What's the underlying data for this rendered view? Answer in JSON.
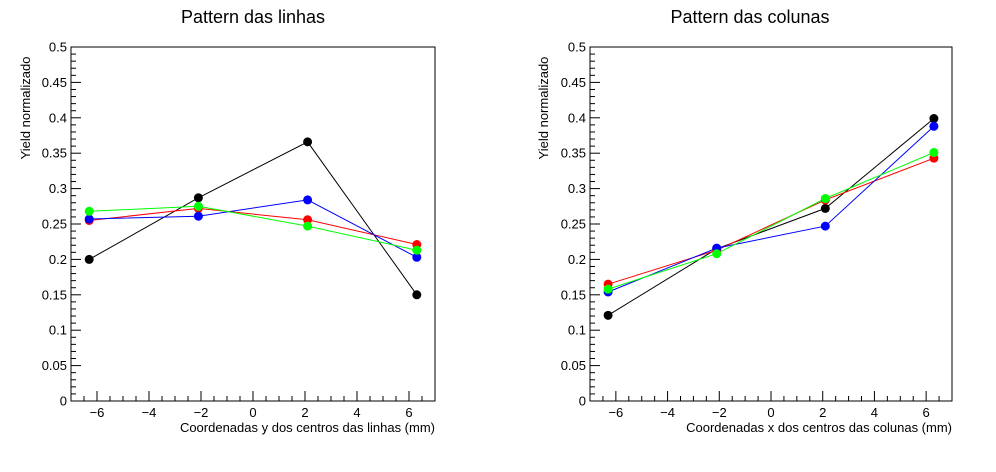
{
  "chart_data": [
    {
      "type": "line",
      "title": "Pattern das linhas",
      "xlabel": "Coordenadas y dos centros das linhas (mm)",
      "ylabel": "Yield normalizado",
      "xlim": [
        -7,
        7
      ],
      "ylim": [
        0,
        0.5
      ],
      "x_ticks": [
        -6,
        -4,
        -2,
        0,
        2,
        4,
        6
      ],
      "x_tick_labels": [
        "−6",
        "−4",
        "−2",
        "0",
        "2",
        "4",
        "6"
      ],
      "y_ticks": [
        0,
        0.05,
        0.1,
        0.15,
        0.2,
        0.25,
        0.3,
        0.35,
        0.4,
        0.45,
        0.5
      ],
      "y_tick_labels": [
        "0",
        "0.05",
        "0.1",
        "0.15",
        "0.2",
        "0.25",
        "0.3",
        "0.35",
        "0.4",
        "0.45",
        "0.5"
      ],
      "grid": false,
      "legend": false,
      "series": [
        {
          "color": "#000000",
          "x": [
            -6.3,
            -2.1,
            2.1,
            6.3
          ],
          "y": [
            0.2,
            0.287,
            0.366,
            0.15
          ]
        },
        {
          "color": "#ff0000",
          "x": [
            -6.3,
            -2.1,
            2.1,
            6.3
          ],
          "y": [
            0.255,
            0.272,
            0.256,
            0.221
          ]
        },
        {
          "color": "#0000ff",
          "x": [
            -6.3,
            -2.1,
            2.1,
            6.3
          ],
          "y": [
            0.257,
            0.261,
            0.284,
            0.203
          ]
        },
        {
          "color": "#00ff00",
          "x": [
            -6.3,
            -2.1,
            2.1,
            6.3
          ],
          "y": [
            0.268,
            0.275,
            0.247,
            0.213
          ]
        }
      ]
    },
    {
      "type": "line",
      "title": "Pattern das colunas",
      "xlabel": "Coordenadas x dos centros das colunas (mm)",
      "ylabel": "Yield normalizado",
      "xlim": [
        -7,
        7
      ],
      "ylim": [
        0,
        0.5
      ],
      "x_ticks": [
        -6,
        -4,
        -2,
        0,
        2,
        4,
        6
      ],
      "x_tick_labels": [
        "−6",
        "−4",
        "−2",
        "0",
        "2",
        "4",
        "6"
      ],
      "y_ticks": [
        0,
        0.05,
        0.1,
        0.15,
        0.2,
        0.25,
        0.3,
        0.35,
        0.4,
        0.45,
        0.5
      ],
      "y_tick_labels": [
        "0",
        "0.05",
        "0.1",
        "0.15",
        "0.2",
        "0.25",
        "0.3",
        "0.35",
        "0.4",
        "0.45",
        "0.5"
      ],
      "grid": false,
      "legend": false,
      "series": [
        {
          "color": "#000000",
          "x": [
            -6.3,
            -2.1,
            2.1,
            6.3
          ],
          "y": [
            0.121,
            0.215,
            0.272,
            0.399
          ]
        },
        {
          "color": "#ff0000",
          "x": [
            -6.3,
            -2.1,
            2.1,
            6.3
          ],
          "y": [
            0.165,
            0.213,
            0.284,
            0.343
          ]
        },
        {
          "color": "#0000ff",
          "x": [
            -6.3,
            -2.1,
            2.1,
            6.3
          ],
          "y": [
            0.154,
            0.216,
            0.247,
            0.388
          ]
        },
        {
          "color": "#00ff00",
          "x": [
            -6.3,
            -2.1,
            2.1,
            6.3
          ],
          "y": [
            0.158,
            0.208,
            0.286,
            0.351
          ]
        }
      ]
    }
  ]
}
